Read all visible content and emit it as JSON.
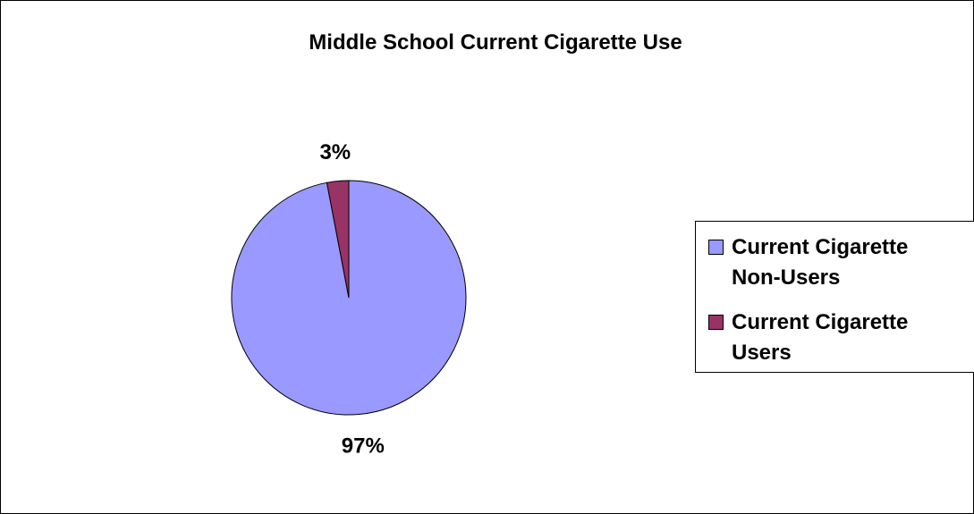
{
  "chart_data": {
    "type": "pie",
    "title": "Middle School Current Cigarette Use",
    "categories": [
      "Current Cigarette Non-Users",
      "Current Cigarette Users"
    ],
    "values": [
      97,
      3
    ],
    "data_labels": [
      "97%",
      "3%"
    ],
    "colors": [
      "#9999ff",
      "#993366"
    ],
    "legend_position": "right"
  },
  "legend": {
    "items": [
      {
        "label_line1": "Current Cigarette",
        "label_line2": "Non-Users"
      },
      {
        "label_line1": "Current Cigarette",
        "label_line2": "Users"
      }
    ]
  }
}
